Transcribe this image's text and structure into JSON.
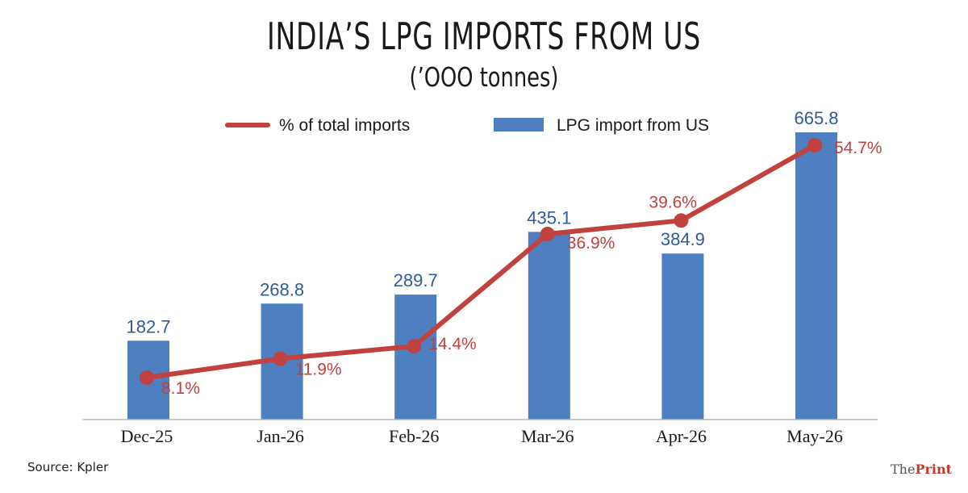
{
  "title": "INDIA’S LPG IMPORTS FROM US",
  "subtitle": "(’OOO tonnes)",
  "source": "Source: Kpler",
  "brand": {
    "the": "The",
    "print": "Print"
  },
  "colors": {
    "bar": "#4e80c1",
    "line": "#c0413e",
    "bar_label": "#2e5b9e"
  },
  "chart_data": {
    "type": "bar",
    "categories": [
      "Dec-25",
      "Jan-26",
      "Feb-26",
      "Mar-26",
      "Apr-26",
      "May-26"
    ],
    "series": [
      {
        "name": "LPG import from US",
        "type": "bar",
        "values": [
          182.7,
          268.8,
          289.7,
          435.1,
          384.9,
          665.8
        ],
        "labels": [
          "182.7",
          "268.8",
          "289.7",
          "435.1",
          "384.9",
          "665.8"
        ]
      },
      {
        "name": "% of total imports",
        "type": "line",
        "values": [
          8.1,
          11.9,
          14.4,
          36.9,
          39.6,
          54.7
        ],
        "labels": [
          "8.1%",
          "11.9%",
          "14.4%",
          "36.9%",
          "39.6%",
          "54.7%"
        ]
      }
    ],
    "legend": [
      "% of total imports",
      "LPG import from US"
    ],
    "legend_position": "top",
    "grid": false
  }
}
